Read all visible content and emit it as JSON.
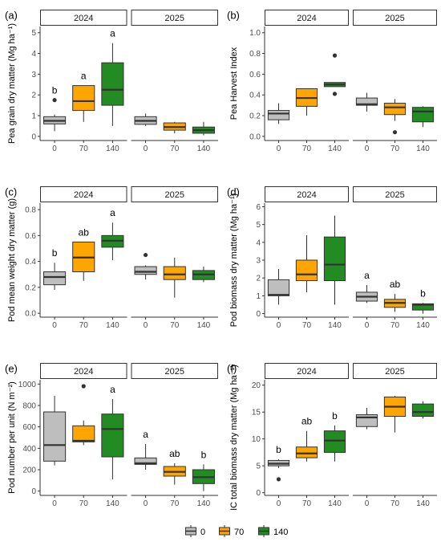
{
  "legend": {
    "items": [
      {
        "label": "0",
        "color": "#BEBEBE"
      },
      {
        "label": "70",
        "color": "#FFA500"
      },
      {
        "label": "140",
        "color": "#228B22"
      }
    ]
  },
  "chart_data": [
    {
      "type": "box",
      "panel_label": "(a)",
      "ylabel": "Pea grain dry matter (Mg ha⁻¹)",
      "ylim": [
        -0.2,
        5.3
      ],
      "yticks": [
        0,
        1,
        2,
        3,
        4,
        5
      ],
      "facets": [
        "2024",
        "2025"
      ],
      "categories": [
        "0",
        "70",
        "140"
      ],
      "boxes": {
        "2024": [
          {
            "group": "0",
            "min": 0.25,
            "q1": 0.6,
            "median": 0.75,
            "q3": 0.95,
            "max": 1.05,
            "outliers": [
              1.75
            ],
            "letter": "b"
          },
          {
            "group": "70",
            "min": 0.7,
            "q1": 1.25,
            "median": 1.7,
            "q3": 2.45,
            "max": 2.45,
            "outliers": [],
            "letter": "a"
          },
          {
            "group": "140",
            "min": 0.5,
            "q1": 1.5,
            "median": 2.25,
            "q3": 3.55,
            "max": 4.5,
            "outliers": [],
            "letter": "a"
          }
        ],
        "2025": [
          {
            "group": "0",
            "min": 0.5,
            "q1": 0.58,
            "median": 0.75,
            "q3": 0.95,
            "max": 1.1,
            "outliers": []
          },
          {
            "group": "70",
            "min": 0.15,
            "q1": 0.3,
            "median": 0.45,
            "q3": 0.65,
            "max": 0.7,
            "outliers": []
          },
          {
            "group": "140",
            "min": 0.05,
            "q1": 0.15,
            "median": 0.3,
            "q3": 0.45,
            "max": 0.7,
            "outliers": []
          }
        ]
      }
    },
    {
      "type": "box",
      "panel_label": "(b)",
      "ylabel": "Pea Harvest Index",
      "ylim": [
        -0.04,
        1.06
      ],
      "yticks": [
        0.0,
        0.2,
        0.4,
        0.6,
        0.8,
        1.0
      ],
      "facets": [
        "2024",
        "2025"
      ],
      "categories": [
        "0",
        "70",
        "140"
      ],
      "boxes": {
        "2024": [
          {
            "group": "0",
            "min": 0.12,
            "q1": 0.16,
            "median": 0.22,
            "q3": 0.25,
            "max": 0.32,
            "outliers": []
          },
          {
            "group": "70",
            "min": 0.2,
            "q1": 0.29,
            "median": 0.37,
            "q3": 0.46,
            "max": 0.46,
            "outliers": []
          },
          {
            "group": "140",
            "min": 0.48,
            "q1": 0.48,
            "median": 0.5,
            "q3": 0.52,
            "max": 0.52,
            "outliers": [
              0.78,
              0.41
            ]
          }
        ],
        "2025": [
          {
            "group": "0",
            "min": 0.24,
            "q1": 0.3,
            "median": 0.31,
            "q3": 0.37,
            "max": 0.42,
            "outliers": []
          },
          {
            "group": "70",
            "min": 0.15,
            "q1": 0.21,
            "median": 0.28,
            "q3": 0.32,
            "max": 0.36,
            "outliers": [
              0.04
            ]
          },
          {
            "group": "140",
            "min": 0.09,
            "q1": 0.14,
            "median": 0.24,
            "q3": 0.28,
            "max": 0.29,
            "outliers": []
          }
        ]
      }
    },
    {
      "type": "box",
      "panel_label": "(c)",
      "ylabel": "Pod mean weight dry matter (g)",
      "ylim": [
        -0.03,
        0.85
      ],
      "yticks": [
        0.0,
        0.2,
        0.4,
        0.6,
        0.8
      ],
      "facets": [
        "2024",
        "2025"
      ],
      "categories": [
        "0",
        "70",
        "140"
      ],
      "boxes": {
        "2024": [
          {
            "group": "0",
            "min": 0.18,
            "q1": 0.22,
            "median": 0.28,
            "q3": 0.32,
            "max": 0.39,
            "outliers": [],
            "letter": "b"
          },
          {
            "group": "70",
            "min": 0.25,
            "q1": 0.32,
            "median": 0.43,
            "q3": 0.55,
            "max": 0.55,
            "outliers": [],
            "letter": "ab"
          },
          {
            "group": "140",
            "min": 0.41,
            "q1": 0.51,
            "median": 0.56,
            "q3": 0.6,
            "max": 0.7,
            "outliers": [],
            "letter": "a"
          }
        ],
        "2025": [
          {
            "group": "0",
            "min": 0.26,
            "q1": 0.3,
            "median": 0.32,
            "q3": 0.36,
            "max": 0.37,
            "outliers": [
              0.45
            ]
          },
          {
            "group": "70",
            "min": 0.12,
            "q1": 0.26,
            "median": 0.3,
            "q3": 0.36,
            "max": 0.43,
            "outliers": []
          },
          {
            "group": "140",
            "min": 0.24,
            "q1": 0.26,
            "median": 0.3,
            "q3": 0.33,
            "max": 0.36,
            "outliers": []
          }
        ]
      }
    },
    {
      "type": "box",
      "panel_label": "(d)",
      "ylabel": "Pod biomass dry matter (Mg ha⁻¹)",
      "ylim": [
        -0.2,
        6.2
      ],
      "yticks": [
        0,
        1,
        2,
        3,
        4,
        5,
        6
      ],
      "facets": [
        "2024",
        "2025"
      ],
      "categories": [
        "0",
        "70",
        "140"
      ],
      "boxes": {
        "2024": [
          {
            "group": "0",
            "min": 0.5,
            "q1": 1.0,
            "median": 1.05,
            "q3": 1.9,
            "max": 2.5,
            "outliers": []
          },
          {
            "group": "70",
            "min": 1.2,
            "q1": 1.85,
            "median": 2.2,
            "q3": 3.0,
            "max": 4.4,
            "outliers": []
          },
          {
            "group": "140",
            "min": 0.5,
            "q1": 1.85,
            "median": 2.75,
            "q3": 4.3,
            "max": 5.5,
            "outliers": []
          }
        ],
        "2025": [
          {
            "group": "0",
            "min": 0.6,
            "q1": 0.7,
            "median": 0.95,
            "q3": 1.2,
            "max": 1.6,
            "outliers": [],
            "letter": "a"
          },
          {
            "group": "70",
            "min": 0.1,
            "q1": 0.35,
            "median": 0.6,
            "q3": 0.8,
            "max": 1.1,
            "outliers": [],
            "letter": "ab"
          },
          {
            "group": "140",
            "min": 0.0,
            "q1": 0.2,
            "median": 0.5,
            "q3": 0.55,
            "max": 0.6,
            "outliers": [],
            "letter": "b"
          }
        ]
      }
    },
    {
      "type": "box",
      "panel_label": "(e)",
      "ylabel": "Pod number per unit (N m⁻²)",
      "ylim": [
        -40,
        1040
      ],
      "yticks": [
        0,
        200,
        400,
        600,
        800,
        1000
      ],
      "facets": [
        "2024",
        "2025"
      ],
      "categories": [
        "0",
        "70",
        "140"
      ],
      "boxes": {
        "2024": [
          {
            "group": "0",
            "min": 240,
            "q1": 280,
            "median": 430,
            "q3": 740,
            "max": 890,
            "outliers": []
          },
          {
            "group": "70",
            "min": 430,
            "q1": 460,
            "median": 470,
            "q3": 610,
            "max": 660,
            "outliers": [
              980
            ]
          },
          {
            "group": "140",
            "min": 110,
            "q1": 320,
            "median": 580,
            "q3": 720,
            "max": 860,
            "outliers": [],
            "letter": "a"
          }
        ],
        "2025": [
          {
            "group": "0",
            "min": 200,
            "q1": 250,
            "median": 260,
            "q3": 310,
            "max": 440,
            "outliers": [],
            "letter": "a"
          },
          {
            "group": "70",
            "min": 60,
            "q1": 140,
            "median": 180,
            "q3": 230,
            "max": 260,
            "outliers": [],
            "letter": "ab"
          },
          {
            "group": "140",
            "min": 0,
            "q1": 70,
            "median": 130,
            "q3": 200,
            "max": 250,
            "outliers": [],
            "letter": "b"
          }
        ]
      }
    },
    {
      "type": "box",
      "panel_label": "(f)",
      "ylabel": "IC total biomass dry matter (Mg ha⁻¹)",
      "ylim": [
        -0.5,
        21
      ],
      "yticks": [
        0,
        5,
        10,
        15,
        20
      ],
      "facets": [
        "2024",
        "2025"
      ],
      "categories": [
        "0",
        "70",
        "140"
      ],
      "boxes": {
        "2024": [
          {
            "group": "0",
            "min": 4.6,
            "q1": 5.0,
            "median": 5.4,
            "q3": 6.0,
            "max": 6.2,
            "outliers": [
              2.5
            ],
            "letter": "b"
          },
          {
            "group": "70",
            "min": 5.8,
            "q1": 6.5,
            "median": 7.3,
            "q3": 8.5,
            "max": 11.5,
            "outliers": [],
            "letter": "ab"
          },
          {
            "group": "140",
            "min": 5.8,
            "q1": 7.5,
            "median": 9.7,
            "q3": 11.5,
            "max": 12.5,
            "outliers": [],
            "letter": "b"
          }
        ],
        "2025": [
          {
            "group": "0",
            "min": 11.8,
            "q1": 12.3,
            "median": 14.0,
            "q3": 14.5,
            "max": 15.8,
            "outliers": []
          },
          {
            "group": "70",
            "min": 11.2,
            "q1": 14.2,
            "median": 16.0,
            "q3": 17.8,
            "max": 18.0,
            "outliers": []
          },
          {
            "group": "140",
            "min": 13.8,
            "q1": 14.2,
            "median": 15.0,
            "q3": 16.5,
            "max": 17.0,
            "outliers": []
          }
        ]
      }
    }
  ]
}
